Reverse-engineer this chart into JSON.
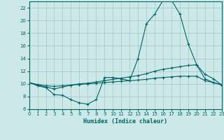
{
  "xlabel": "Humidex (Indice chaleur)",
  "ylabel": "",
  "bg_color": "#cce8e8",
  "grid_color": "#aacccc",
  "line_color": "#006666",
  "xlim": [
    0,
    23
  ],
  "ylim": [
    6,
    23
  ],
  "yticks": [
    6,
    8,
    10,
    12,
    14,
    16,
    18,
    20,
    22
  ],
  "xticks": [
    0,
    1,
    2,
    3,
    4,
    5,
    6,
    7,
    8,
    9,
    10,
    11,
    12,
    13,
    14,
    15,
    16,
    17,
    18,
    19,
    20,
    21,
    22,
    23
  ],
  "line1_x": [
    0,
    1,
    2,
    3,
    4,
    5,
    6,
    7,
    8,
    9,
    10,
    11,
    12,
    13,
    14,
    15,
    16,
    17,
    18,
    19,
    20,
    21,
    22,
    23
  ],
  "line1_y": [
    10.2,
    9.7,
    9.4,
    8.3,
    8.2,
    7.5,
    7.0,
    6.8,
    7.5,
    11.0,
    11.0,
    10.8,
    10.5,
    14.0,
    19.5,
    21.0,
    23.2,
    23.2,
    21.0,
    16.3,
    13.0,
    11.5,
    10.8,
    9.8
  ],
  "line2_x": [
    0,
    1,
    2,
    3,
    4,
    5,
    6,
    7,
    8,
    9,
    10,
    11,
    12,
    13,
    14,
    15,
    16,
    17,
    18,
    19,
    20,
    21,
    22,
    23
  ],
  "line2_y": [
    10.2,
    9.8,
    9.5,
    9.2,
    9.5,
    9.8,
    10.0,
    10.1,
    10.3,
    10.5,
    10.7,
    10.9,
    11.1,
    11.3,
    11.6,
    12.0,
    12.3,
    12.5,
    12.7,
    12.9,
    13.0,
    10.8,
    10.2,
    9.8
  ],
  "line3_x": [
    0,
    1,
    2,
    3,
    4,
    5,
    6,
    7,
    8,
    9,
    10,
    11,
    12,
    13,
    14,
    15,
    16,
    17,
    18,
    19,
    20,
    21,
    22,
    23
  ],
  "line3_y": [
    10.2,
    9.9,
    9.7,
    9.6,
    9.7,
    9.8,
    9.9,
    10.0,
    10.1,
    10.2,
    10.3,
    10.4,
    10.5,
    10.6,
    10.7,
    10.9,
    11.0,
    11.1,
    11.2,
    11.2,
    11.2,
    10.5,
    10.2,
    9.9
  ]
}
